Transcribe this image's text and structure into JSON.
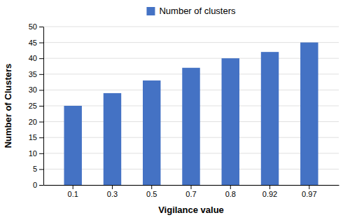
{
  "chart_data": {
    "type": "bar",
    "categories": [
      "0.1",
      "0.3",
      "0.5",
      "0.7",
      "0.8",
      "0.92",
      "0.97"
    ],
    "series": [
      {
        "name": "Number of clusters",
        "color": "#4472c4",
        "values": [
          25,
          29,
          33,
          37,
          40,
          42,
          45
        ]
      }
    ],
    "xlabel": "Vigilance value",
    "ylabel": "Number of Clusters",
    "ylim": [
      0,
      50
    ],
    "yticks": [
      0,
      5,
      10,
      15,
      20,
      25,
      30,
      35,
      40,
      45,
      50
    ],
    "grid": true,
    "legend": "top"
  }
}
